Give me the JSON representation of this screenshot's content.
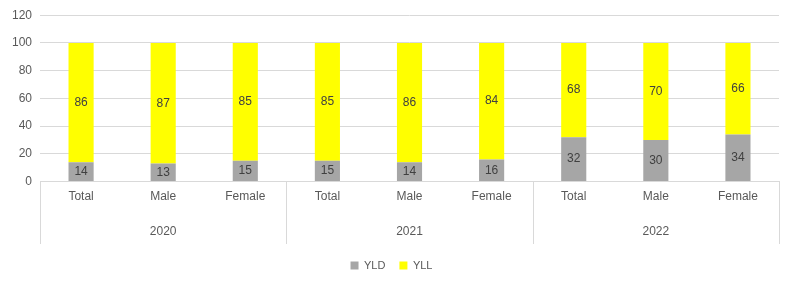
{
  "chart_data": {
    "type": "bar",
    "groups": [
      {
        "label": "2020",
        "categories": [
          "Total",
          "Male",
          "Female"
        ]
      },
      {
        "label": "2021",
        "categories": [
          "Total",
          "Male",
          "Female"
        ]
      },
      {
        "label": "2022",
        "categories": [
          "Total",
          "Male",
          "Female"
        ]
      }
    ],
    "series": [
      {
        "name": "YLD",
        "color": "#a6a6a6",
        "values": [
          14,
          13,
          15,
          15,
          14,
          16,
          32,
          30,
          34
        ]
      },
      {
        "name": "YLL",
        "color": "#ffff00",
        "values": [
          86,
          87,
          85,
          85,
          86,
          84,
          68,
          70,
          66
        ]
      }
    ],
    "stacked": true,
    "data_labels": true,
    "ylim": [
      0,
      120
    ],
    "yticks": [
      0,
      20,
      40,
      60,
      80,
      100,
      120
    ],
    "grid": true,
    "legend": "bottom"
  }
}
